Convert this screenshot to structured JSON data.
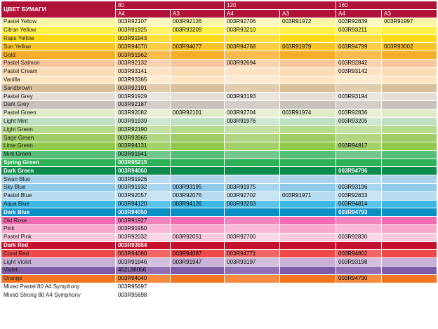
{
  "header": {
    "title": "ЦВЕТ БУМАГИ",
    "weights": [
      "80",
      "120",
      "160"
    ],
    "formats": [
      "A4",
      "A3",
      "A4",
      "A3",
      "A4",
      "A3"
    ]
  },
  "colors": {
    "header_bg": "#b0123a",
    "grid": "#ffffff"
  },
  "rows": [
    {
      "name": "Pastel Yellow",
      "bg": "#fbf6a6",
      "tint": "#fcf8c2",
      "c": [
        "003R92107",
        "003R92126",
        "003R92706",
        "003R91972",
        "003R92839",
        "003R91997"
      ]
    },
    {
      "name": "Citron Yellow",
      "bg": "#fff14a",
      "tint": "#fff36a",
      "c": [
        "003R91925",
        "003R93209",
        "003R93210",
        "",
        "003R93211",
        ""
      ]
    },
    {
      "name": "Raps Yellow",
      "bg": "#ffd817",
      "tint": "#ffdd3a",
      "c": [
        "003R91943",
        "",
        "",
        "",
        "",
        ""
      ]
    },
    {
      "name": "Sun Yellow",
      "bg": "#fcc427",
      "tint": "#fdcd45",
      "c": [
        "003R94070",
        "003R94077",
        "003R94768",
        "003R91979",
        "003R94799",
        "003R93002"
      ]
    },
    {
      "name": "Gold",
      "bg": "#f6ae2a",
      "tint": "#f8bc4e",
      "c": [
        "003R91962",
        "",
        "",
        "",
        "",
        ""
      ]
    },
    {
      "name": "Pastel Salmon",
      "bg": "#f9c69c",
      "tint": "#fbd3b2",
      "c": [
        "003R92132",
        "",
        "003R92694",
        "",
        "003R92842",
        ""
      ]
    },
    {
      "name": "Pastel Cream",
      "bg": "#fbdbb5",
      "tint": "#fce3c6",
      "c": [
        "003R93141",
        "",
        "",
        "",
        "003R93142",
        ""
      ]
    },
    {
      "name": "Vanilla",
      "bg": "#fde5bf",
      "tint": "#fdebcf",
      "c": [
        "003R93365",
        "",
        "",
        "",
        "",
        ""
      ]
    },
    {
      "name": "Sandbrown",
      "bg": "#d8c09b",
      "tint": "#e1cdad",
      "c": [
        "003R92191",
        "",
        "",
        "",
        "",
        ""
      ]
    },
    {
      "name": "Pastel Grey",
      "bg": "#e5ddd7",
      "tint": "#ebe5e0",
      "c": [
        "003R91929",
        "",
        "003R93193",
        "",
        "003R93194",
        ""
      ]
    },
    {
      "name": "Dark Grey",
      "bg": "#c8c1bc",
      "tint": "#d4ceca",
      "c": [
        "003R92187",
        "",
        "",
        "",
        "",
        ""
      ]
    },
    {
      "name": "Pastel Green",
      "bg": "#dfeac6",
      "tint": "#e7efd4",
      "c": [
        "003R92082",
        "003R92101",
        "003R92704",
        "003R91974",
        "003R92836",
        ""
      ]
    },
    {
      "name": "Light Mint",
      "bg": "#bfe0c3",
      "tint": "#cee7d1",
      "c": [
        "003R91939",
        "",
        "003R91976",
        "",
        "003R93205",
        ""
      ]
    },
    {
      "name": "Light Green",
      "bg": "#b4da8c",
      "tint": "#c3e1a2",
      "c": [
        "003R92190",
        "",
        "",
        "",
        "",
        ""
      ]
    },
    {
      "name": "Sage Green",
      "bg": "#9fcc67",
      "tint": "#b1d583",
      "c": [
        "003R93965",
        "",
        "",
        "",
        "",
        ""
      ]
    },
    {
      "name": "Lime Green",
      "bg": "#8fc84a",
      "tint": "#a3d169",
      "c": [
        "003R94131",
        "",
        "",
        "",
        "003R94817",
        ""
      ]
    },
    {
      "name": "Mint Green",
      "bg": "#57bd77",
      "tint": "#73c78d",
      "c": [
        "003R91941",
        "",
        "",
        "",
        "",
        ""
      ]
    },
    {
      "name": "Spring Green",
      "bg": "#2db155",
      "tint": "#47bb6a",
      "light": true,
      "c": [
        "003R95215",
        "",
        "",
        "",
        "",
        ""
      ]
    },
    {
      "name": "Dark Green",
      "bg": "#0e8c4e",
      "tint": "#1c9a5c",
      "light": true,
      "c": [
        "003R94060",
        "",
        "",
        "",
        "003R94796",
        ""
      ]
    },
    {
      "name": "Swan Blue",
      "bg": "#a9d1e9",
      "tint": "#bcdbee",
      "c": [
        "003R91926",
        "",
        "",
        "",
        "",
        ""
      ]
    },
    {
      "name": "Sky Blue",
      "bg": "#8fcbe9",
      "tint": "#a6d5ed",
      "c": [
        "003R91932",
        "003R93195",
        "003R91975",
        "",
        "003R93196",
        ""
      ]
    },
    {
      "name": "Pastel Blue",
      "bg": "#b7dcef",
      "tint": "#c8e4f3",
      "c": [
        "003R92057",
        "003R92076",
        "003R92702",
        "003R91971",
        "003R92833",
        ""
      ]
    },
    {
      "name": "Aqua Blue",
      "bg": "#3db8e4",
      "tint": "#5bc3e9",
      "c": [
        "003R94120",
        "003R94126",
        "003R93203",
        "",
        "003R94814",
        ""
      ]
    },
    {
      "name": "Dark Blue",
      "bg": "#0a8fc4",
      "tint": "#1a9ccf",
      "light": true,
      "c": [
        "003R94050",
        "",
        "",
        "",
        "003R94793",
        ""
      ]
    },
    {
      "name": "Old Rose",
      "bg": "#f06bb0",
      "tint": "#f285be",
      "c": [
        "003R91927",
        "",
        "",
        "",
        "",
        ""
      ]
    },
    {
      "name": "Pink",
      "bg": "#f6a9cc",
      "tint": "#f8bad7",
      "c": [
        "003R91950",
        "",
        "",
        "",
        "",
        ""
      ]
    },
    {
      "name": "Pastel Pink",
      "bg": "#f8cadf",
      "tint": "#fad6e6",
      "c": [
        "003R92032",
        "003R92051",
        "003R92700",
        "",
        "003R92830",
        ""
      ]
    },
    {
      "name": "Dark Red",
      "bg": "#c4122e",
      "tint": "#cc2a42",
      "light": true,
      "c": [
        "003R93954",
        "",
        "",
        "",
        "",
        ""
      ]
    },
    {
      "name": "Coral Red",
      "bg": "#ef4a4a",
      "tint": "#f26565",
      "c": [
        "003R94080",
        "003R94087",
        "003R94771",
        "",
        "003R94802",
        ""
      ]
    },
    {
      "name": "Light Violet",
      "bg": "#c8b1d6",
      "tint": "#d3c0de",
      "c": [
        "003R91946",
        "003R91947",
        "003R93197",
        "",
        "003R93198",
        ""
      ]
    },
    {
      "name": "Violet",
      "bg": "#7d5ba6",
      "tint": "#8f71b3",
      "c": [
        "452L88066",
        "",
        "",
        "",
        "",
        ""
      ]
    },
    {
      "name": "Orange",
      "bg": "#f47521",
      "tint": "#f68a41",
      "c": [
        "003R94040",
        "",
        "",
        "",
        "003R94790",
        ""
      ]
    },
    {
      "name": "Mixed Pastel 80 A4 Symphony",
      "bg": "#ffffff",
      "tint": "#ffffff",
      "c": [
        "003R95697",
        "",
        "",
        "",
        "",
        ""
      ]
    },
    {
      "name": "Mixed Strong 80 A4 Symphony",
      "bg": "#ffffff",
      "tint": "#ffffff",
      "c": [
        "003R95698",
        "",
        "",
        "",
        "",
        ""
      ]
    }
  ]
}
